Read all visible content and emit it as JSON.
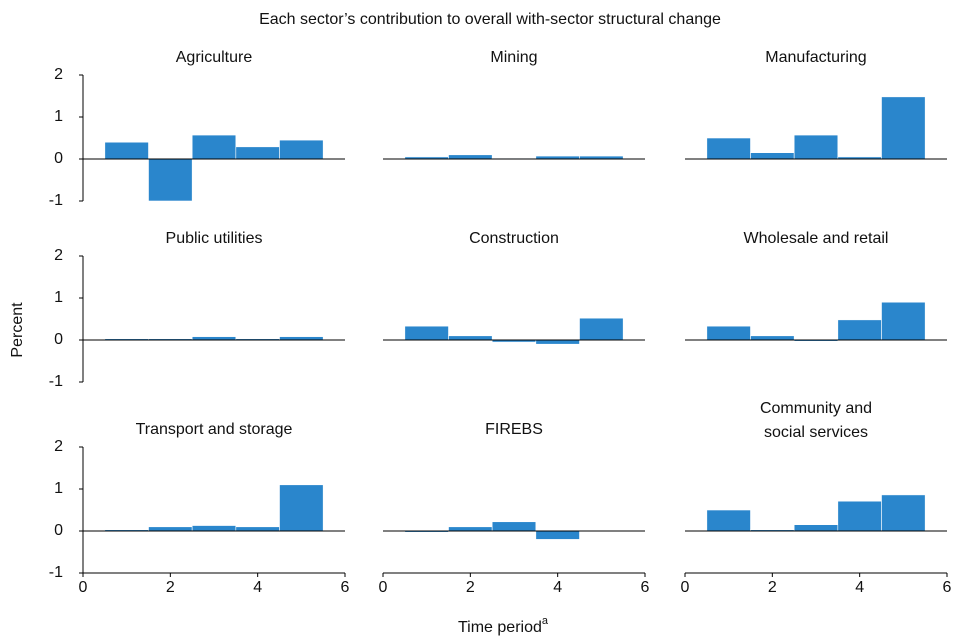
{
  "title": "Each sector’s contribution to overall with-sector structural change",
  "ylabel": "Percent",
  "xlabel": "Time period",
  "xlabel_superscript": "a",
  "chart_data": [
    {
      "type": "bar",
      "title": "Agriculture",
      "x": [
        1,
        2,
        3,
        4,
        5
      ],
      "values": [
        0.4,
        -1.0,
        0.57,
        0.29,
        0.45
      ],
      "color": "#2a86cc",
      "xlim": [
        0,
        6
      ],
      "ylim": [
        -1,
        2
      ],
      "yticks": [
        -1,
        0,
        1,
        2
      ]
    },
    {
      "type": "bar",
      "title": "Mining",
      "x": [
        1,
        2,
        3,
        4,
        5
      ],
      "values": [
        0.05,
        0.1,
        0.02,
        0.07,
        0.07
      ],
      "color": "#2a86cc",
      "xlim": [
        0,
        6
      ],
      "ylim": [
        -1,
        2
      ]
    },
    {
      "type": "bar",
      "title": "Manufacturing",
      "x": [
        1,
        2,
        3,
        4,
        5
      ],
      "values": [
        0.5,
        0.15,
        0.57,
        0.05,
        1.48
      ],
      "color": "#2a86cc",
      "xlim": [
        0,
        6
      ],
      "ylim": [
        -1,
        2
      ]
    },
    {
      "type": "bar",
      "title": "Public utilities",
      "x": [
        1,
        2,
        3,
        4,
        5
      ],
      "values": [
        0.03,
        0.03,
        0.08,
        0.03,
        0.08
      ],
      "color": "#2a86cc",
      "xlim": [
        0,
        6
      ],
      "ylim": [
        -1,
        2
      ],
      "yticks": [
        -1,
        0,
        1,
        2
      ]
    },
    {
      "type": "bar",
      "title": "Construction",
      "x": [
        1,
        2,
        3,
        4,
        5
      ],
      "values": [
        0.33,
        0.1,
        -0.05,
        -0.1,
        0.52
      ],
      "color": "#2a86cc",
      "xlim": [
        0,
        6
      ],
      "ylim": [
        -1,
        2
      ]
    },
    {
      "type": "bar",
      "title": "Wholesale and retail",
      "x": [
        1,
        2,
        3,
        4,
        5
      ],
      "values": [
        0.33,
        0.1,
        -0.03,
        0.48,
        0.9
      ],
      "color": "#2a86cc",
      "xlim": [
        0,
        6
      ],
      "ylim": [
        -1,
        2
      ]
    },
    {
      "type": "bar",
      "title": "Transport  and storage",
      "x": [
        1,
        2,
        3,
        4,
        5
      ],
      "values": [
        0.03,
        0.1,
        0.13,
        0.1,
        1.1
      ],
      "color": "#2a86cc",
      "xlim": [
        0,
        6
      ],
      "ylim": [
        -1,
        2
      ],
      "yticks": [
        -1,
        0,
        1,
        2
      ],
      "xticks": [
        0,
        2,
        4,
        6
      ]
    },
    {
      "type": "bar",
      "title": "FIREBS",
      "x": [
        1,
        2,
        3,
        4,
        5
      ],
      "values": [
        -0.03,
        0.1,
        0.22,
        -0.2,
        0
      ],
      "color": "#2a86cc",
      "xlim": [
        0,
        6
      ],
      "ylim": [
        -1,
        2
      ],
      "xticks": [
        0,
        2,
        4,
        6
      ]
    },
    {
      "type": "bar",
      "title": [
        "Community and",
        "social services"
      ],
      "x": [
        1,
        2,
        3,
        4,
        5
      ],
      "values": [
        0.5,
        0.03,
        0.15,
        0.71,
        0.86
      ],
      "color": "#2a86cc",
      "xlim": [
        0,
        6
      ],
      "ylim": [
        -1,
        2
      ],
      "xticks": [
        0,
        2,
        4,
        6
      ]
    }
  ]
}
